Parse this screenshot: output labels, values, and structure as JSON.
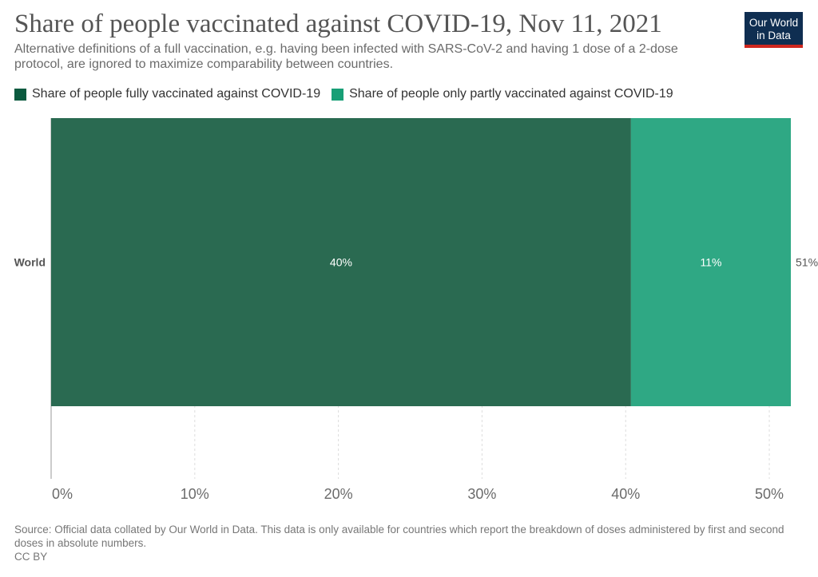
{
  "title": "Share of people vaccinated against COVID-19, Nov 11, 2021",
  "subtitle": "Alternative definitions of a full vaccination, e.g. having been infected with SARS-CoV-2 and having 1 dose of a 2-dose protocol, are ignored to maximize comparability between countries.",
  "logo": {
    "line1": "Our World",
    "line2": "in Data"
  },
  "source": {
    "text": "Source: Official data collated by Our World in Data. This data is only available for countries which report the breakdown of doses administered by first and second doses in absolute numbers.",
    "license": "CC BY"
  },
  "colors": {
    "fully": "#2a6a51",
    "partly": "#2fa884",
    "fully_legend": "#0b5a3f",
    "partly_legend": "#189f76"
  },
  "chart_data": {
    "type": "bar",
    "orientation": "horizontal",
    "stacked": true,
    "title": "Share of people vaccinated against COVID-19, Nov 11, 2021",
    "categories": [
      "World"
    ],
    "series": [
      {
        "name": "Share of people fully vaccinated against COVID-19",
        "values": [
          40.37
        ],
        "label": "40%"
      },
      {
        "name": "Share of people only partly vaccinated against COVID-19",
        "values": [
          11.13
        ],
        "label": "11%"
      }
    ],
    "totals": [
      "51%"
    ],
    "xlim": [
      0,
      52
    ],
    "xticks": [
      0,
      10,
      20,
      30,
      40,
      50
    ],
    "xtick_labels": [
      "0%",
      "10%",
      "20%",
      "30%",
      "40%",
      "50%"
    ],
    "xlabel": "",
    "ylabel": "",
    "legend": "top-left",
    "grid": "vertical-dashed"
  }
}
